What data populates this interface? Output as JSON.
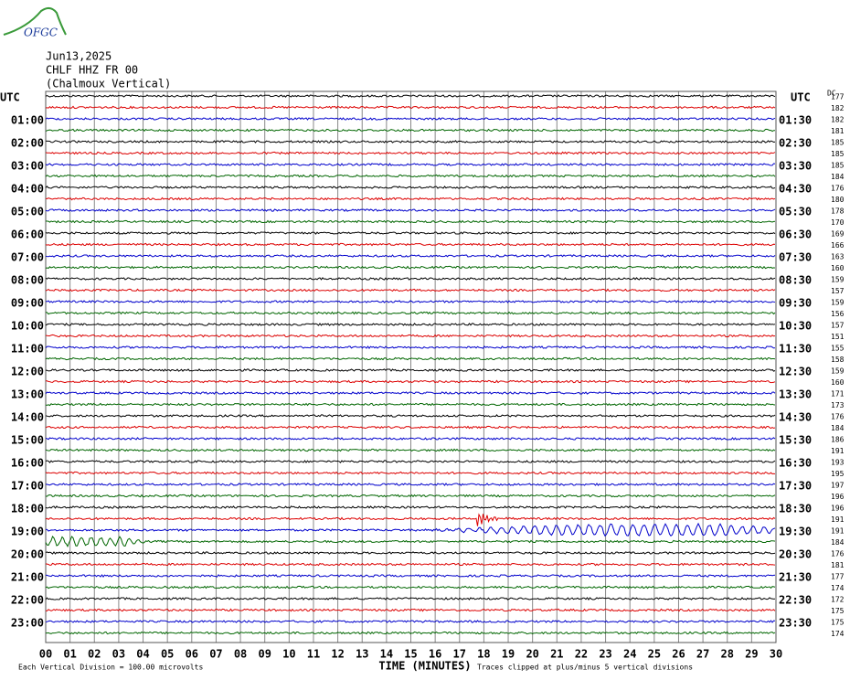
{
  "logo": "OFGC",
  "header": {
    "date": "Jun13,2025",
    "station": "CHLF HHZ FR 00",
    "name": "(Chalmoux Vertical)"
  },
  "left_header": "UTC",
  "right_header": "UTC",
  "dc_header": "DC",
  "left_labels": [
    "01:00",
    "02:00",
    "03:00",
    "04:00",
    "05:00",
    "06:00",
    "07:00",
    "08:00",
    "09:00",
    "10:00",
    "11:00",
    "12:00",
    "13:00",
    "14:00",
    "15:00",
    "16:00",
    "17:00",
    "18:00",
    "19:00",
    "20:00",
    "21:00",
    "22:00",
    "23:00"
  ],
  "right_labels": [
    "01:30",
    "02:30",
    "03:30",
    "04:30",
    "05:30",
    "06:30",
    "07:30",
    "08:30",
    "09:30",
    "10:30",
    "11:30",
    "12:30",
    "13:30",
    "14:30",
    "15:30",
    "16:30",
    "17:30",
    "18:30",
    "19:30",
    "20:30",
    "21:30",
    "22:30",
    "23:30"
  ],
  "dc_values": [
    177,
    182,
    182,
    181,
    185,
    185,
    185,
    184,
    176,
    180,
    178,
    170,
    169,
    166,
    163,
    160,
    159,
    157,
    159,
    156,
    157,
    151,
    155,
    158,
    159,
    160,
    171,
    173,
    176,
    184,
    186,
    191,
    193,
    195,
    197,
    196,
    196,
    191,
    191,
    184,
    176,
    181,
    177,
    174,
    172,
    175,
    175,
    174
  ],
  "x_ticks": [
    "00",
    "01",
    "02",
    "03",
    "04",
    "05",
    "06",
    "07",
    "08",
    "09",
    "10",
    "11",
    "12",
    "13",
    "14",
    "15",
    "16",
    "17",
    "18",
    "19",
    "20",
    "21",
    "22",
    "23",
    "24",
    "25",
    "26",
    "27",
    "28",
    "29",
    "30"
  ],
  "x_axis_label": "TIME (MINUTES)",
  "footer_left": "Each Vertical Division =  100.00 microvolts",
  "footer_right": "Traces clipped at plus/minus 5 vertical divisions"
}
